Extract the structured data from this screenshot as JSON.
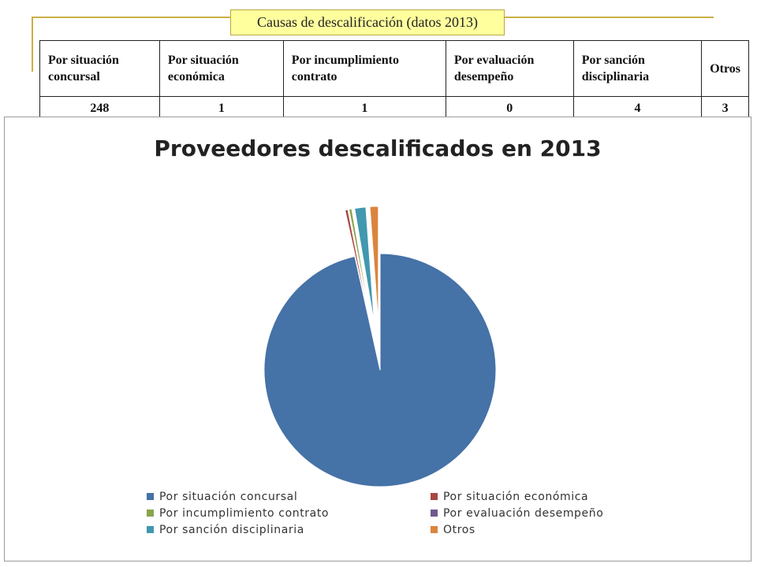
{
  "banner": {
    "title": "Causas de descalificación (datos 2013)"
  },
  "table": {
    "headers": [
      "Por situación concursal",
      "Por situación económica",
      "Por incumplimiento contrato",
      "Por evaluación desempeño",
      "Por sanción disciplinaria",
      "Otros"
    ],
    "values": [
      "248",
      "1",
      "1",
      "0",
      "4",
      "3"
    ]
  },
  "chart_data": {
    "type": "pie",
    "title": "Proveedores descalificados en 2013",
    "categories": [
      "Por situación concursal",
      "Por situación económica",
      "Por incumplimiento contrato",
      "Por evaluación desempeño",
      "Por sanción disciplinaria",
      "Otros"
    ],
    "values": [
      248,
      1,
      1,
      0,
      4,
      3
    ],
    "colors": [
      "#4572a7",
      "#aa4643",
      "#89a54e",
      "#71588f",
      "#4198af",
      "#db843d"
    ],
    "exploded": true,
    "legend_position": "bottom"
  }
}
